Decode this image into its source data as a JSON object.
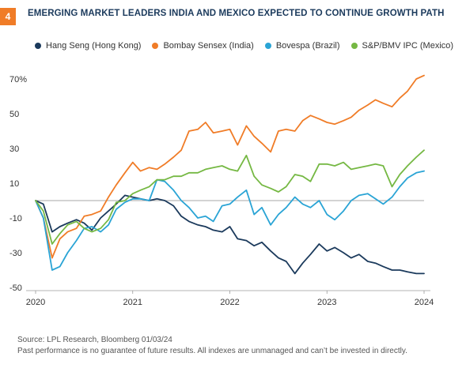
{
  "header": {
    "badge": "4",
    "title": "EMERGING MARKET LEADERS INDIA AND MEXICO EXPECTED TO CONTINUE GROWTH PATH"
  },
  "footer": {
    "source": "Source: LPL Research, Bloomberg 01/03/24",
    "disclaimer": "Past performance is no guarantee of future results. All indexes are unmanaged and can’t be invested in directly."
  },
  "chart_data": {
    "type": "line",
    "title": "EMERGING MARKET LEADERS INDIA AND MEXICO EXPECTED TO CONTINUE GROWTH PATH",
    "xlabel": "",
    "ylabel": "",
    "xlim": [
      2020,
      2024
    ],
    "ylim": [
      -50,
      75
    ],
    "x_ticks": [
      "2020",
      "2021",
      "2022",
      "2023",
      "2024"
    ],
    "y_ticks": [
      {
        "value": 70,
        "label": "70%"
      },
      {
        "value": 50,
        "label": "50"
      },
      {
        "value": 30,
        "label": "30"
      },
      {
        "value": 10,
        "label": "10"
      },
      {
        "value": -10,
        "label": "-10"
      },
      {
        "value": -30,
        "label": "-30"
      },
      {
        "value": -50,
        "label": "-50"
      }
    ],
    "zero_line": true,
    "grid": false,
    "legend_position": "top",
    "x": [
      2020.0,
      2020.08,
      2020.17,
      2020.25,
      2020.33,
      2020.42,
      2020.5,
      2020.58,
      2020.67,
      2020.75,
      2020.83,
      2020.92,
      2021.0,
      2021.08,
      2021.17,
      2021.25,
      2021.33,
      2021.42,
      2021.5,
      2021.58,
      2021.67,
      2021.75,
      2021.83,
      2021.92,
      2022.0,
      2022.08,
      2022.17,
      2022.25,
      2022.33,
      2022.42,
      2022.5,
      2022.58,
      2022.67,
      2022.75,
      2022.83,
      2022.92,
      2023.0,
      2023.08,
      2023.17,
      2023.25,
      2023.33,
      2023.42,
      2023.5,
      2023.58,
      2023.67,
      2023.75,
      2023.83,
      2023.92,
      2024.0
    ],
    "series": [
      {
        "name": "Hang Seng (Hong Kong)",
        "color": "#1b3a5c",
        "values": [
          0,
          -2,
          -18,
          -15,
          -13,
          -11,
          -13,
          -17,
          -10,
          -6,
          -2,
          3,
          2,
          1,
          0,
          1,
          0,
          -3,
          -9,
          -12,
          -14,
          -15,
          -17,
          -18,
          -15,
          -22,
          -23,
          -26,
          -24,
          -29,
          -33,
          -35,
          -42,
          -36,
          -31,
          -25,
          -29,
          -27,
          -30,
          -33,
          -31,
          -35,
          -36,
          -38,
          -40,
          -40,
          -41,
          -42,
          -42
        ]
      },
      {
        "name": "Bombay Sensex (India)",
        "color": "#f07c27",
        "values": [
          0,
          -10,
          -33,
          -22,
          -18,
          -16,
          -9,
          -8,
          -6,
          2,
          9,
          16,
          22,
          17,
          19,
          18,
          21,
          25,
          29,
          40,
          41,
          45,
          39,
          40,
          41,
          32,
          43,
          37,
          33,
          28,
          40,
          41,
          40,
          46,
          49,
          47,
          45,
          44,
          46,
          48,
          52,
          55,
          58,
          56,
          54,
          59,
          63,
          70,
          72
        ]
      },
      {
        "name": "Bovespa (Brazil)",
        "color": "#2aa4d5",
        "values": [
          0,
          -10,
          -40,
          -38,
          -30,
          -23,
          -16,
          -15,
          -18,
          -14,
          -5,
          -1,
          1,
          1,
          0,
          12,
          11,
          6,
          0,
          -4,
          -10,
          -9,
          -12,
          -3,
          -2,
          2,
          6,
          -8,
          -4,
          -14,
          -8,
          -4,
          2,
          -2,
          -4,
          0,
          -8,
          -11,
          -6,
          0,
          3,
          4,
          1,
          -2,
          2,
          8,
          13,
          16,
          17
        ]
      },
      {
        "name": "S&P/BMV IPC (Mexico)",
        "color": "#75b843",
        "values": [
          0,
          -6,
          -25,
          -19,
          -14,
          -12,
          -16,
          -18,
          -16,
          -11,
          -1,
          0,
          4,
          6,
          8,
          12,
          12,
          14,
          14,
          16,
          16,
          18,
          19,
          20,
          18,
          17,
          26,
          14,
          9,
          7,
          5,
          8,
          15,
          14,
          11,
          21,
          21,
          20,
          22,
          18,
          19,
          20,
          21,
          20,
          8,
          15,
          20,
          25,
          29
        ]
      }
    ]
  }
}
